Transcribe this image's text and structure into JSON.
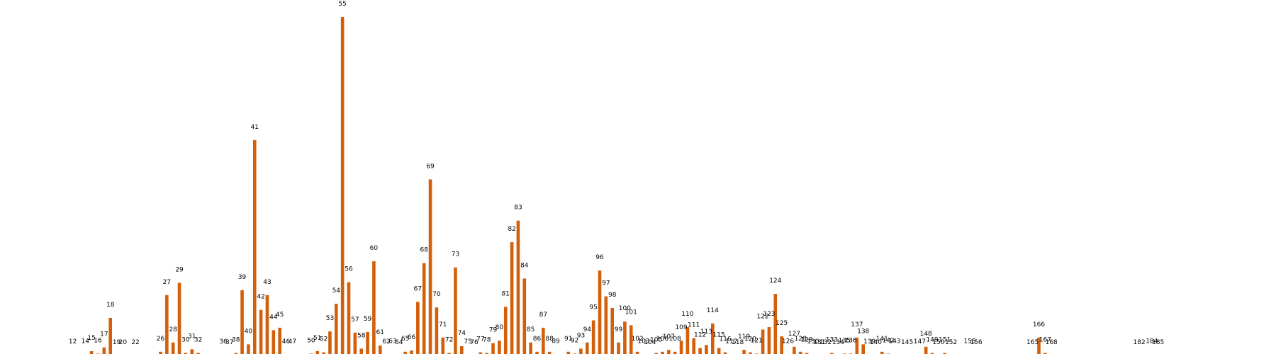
{
  "colors": {
    "bar": "#d35f0a",
    "background": "#ffffff"
  },
  "chart_data": {
    "type": "bar",
    "title": "",
    "xlabel": "",
    "ylabel": "",
    "ylim": [
      0,
      55
    ],
    "grid": false,
    "legend": "none",
    "data_labels": "bar index above each bar",
    "bars": [
      {
        "label": "12",
        "value": 0.1
      },
      {
        "label": "14",
        "value": 0.2
      },
      {
        "label": "15",
        "value": 0.7
      },
      {
        "label": "16",
        "value": 0.3
      },
      {
        "label": "17",
        "value": 1.3
      },
      {
        "label": "18",
        "value": 6.1
      },
      {
        "label": "19",
        "value": 0
      },
      {
        "label": "20",
        "value": 0
      },
      {
        "label": "22",
        "value": 0
      },
      {
        "label": "26",
        "value": 0.6
      },
      {
        "label": "27",
        "value": 9.8
      },
      {
        "label": "28",
        "value": 2.1
      },
      {
        "label": "29",
        "value": 11.8
      },
      {
        "label": "30",
        "value": 0.4
      },
      {
        "label": "31",
        "value": 1.0
      },
      {
        "label": "32",
        "value": 0.4
      },
      {
        "label": "36",
        "value": 0.1
      },
      {
        "label": "37",
        "value": 0
      },
      {
        "label": "38",
        "value": 0.4
      },
      {
        "label": "39",
        "value": 10.6
      },
      {
        "label": "40",
        "value": 1.8
      },
      {
        "label": "41",
        "value": 35.0
      },
      {
        "label": "42",
        "value": 7.4
      },
      {
        "label": "43",
        "value": 9.8
      },
      {
        "label": "44",
        "value": 4.1
      },
      {
        "label": "45",
        "value": 4.5
      },
      {
        "label": "46",
        "value": 0.1
      },
      {
        "label": "47",
        "value": 0.1
      },
      {
        "label": "50",
        "value": 0.3
      },
      {
        "label": "51",
        "value": 0.7
      },
      {
        "label": "52",
        "value": 0.5
      },
      {
        "label": "53",
        "value": 3.9
      },
      {
        "label": "54",
        "value": 8.4
      },
      {
        "label": "55",
        "value": 55.0
      },
      {
        "label": "56",
        "value": 11.9
      },
      {
        "label": "57",
        "value": 3.7
      },
      {
        "label": "58",
        "value": 1.1
      },
      {
        "label": "59",
        "value": 3.8
      },
      {
        "label": "60",
        "value": 15.3
      },
      {
        "label": "61",
        "value": 1.6
      },
      {
        "label": "62",
        "value": 0.1
      },
      {
        "label": "63",
        "value": 0.2
      },
      {
        "label": "64",
        "value": 0
      },
      {
        "label": "65",
        "value": 0.6
      },
      {
        "label": "66",
        "value": 0.8
      },
      {
        "label": "67",
        "value": 8.7
      },
      {
        "label": "68",
        "value": 15.0
      },
      {
        "label": "69",
        "value": 28.6
      },
      {
        "label": "70",
        "value": 7.8
      },
      {
        "label": "71",
        "value": 2.9
      },
      {
        "label": "72",
        "value": 0.4
      },
      {
        "label": "73",
        "value": 14.3
      },
      {
        "label": "74",
        "value": 1.5
      },
      {
        "label": "75",
        "value": 0.1
      },
      {
        "label": "76",
        "value": 0
      },
      {
        "label": "77",
        "value": 0.5
      },
      {
        "label": "78",
        "value": 0.4
      },
      {
        "label": "79",
        "value": 2.0
      },
      {
        "label": "80",
        "value": 2.4
      },
      {
        "label": "81",
        "value": 7.9
      },
      {
        "label": "82",
        "value": 18.4
      },
      {
        "label": "83",
        "value": 21.9
      },
      {
        "label": "84",
        "value": 12.5
      },
      {
        "label": "85",
        "value": 2.1
      },
      {
        "label": "86",
        "value": 0.6
      },
      {
        "label": "87",
        "value": 4.5
      },
      {
        "label": "88",
        "value": 0.6
      },
      {
        "label": "89",
        "value": 0.2
      },
      {
        "label": "91",
        "value": 0.6
      },
      {
        "label": "92",
        "value": 0.3
      },
      {
        "label": "93",
        "value": 1.1
      },
      {
        "label": "94",
        "value": 2.1
      },
      {
        "label": "95",
        "value": 5.7
      },
      {
        "label": "96",
        "value": 13.8
      },
      {
        "label": "97",
        "value": 9.6
      },
      {
        "label": "98",
        "value": 7.7
      },
      {
        "label": "99",
        "value": 2.1
      },
      {
        "label": "100",
        "value": 5.5
      },
      {
        "label": "101",
        "value": 4.9
      },
      {
        "label": "102",
        "value": 0.6
      },
      {
        "label": "103",
        "value": 0.2
      },
      {
        "label": "104",
        "value": 0
      },
      {
        "label": "105",
        "value": 0.4
      },
      {
        "label": "106",
        "value": 0.6
      },
      {
        "label": "107",
        "value": 0.9
      },
      {
        "label": "108",
        "value": 0.6
      },
      {
        "label": "109",
        "value": 2.4
      },
      {
        "label": "110",
        "value": 4.6
      },
      {
        "label": "111",
        "value": 2.8
      },
      {
        "label": "112",
        "value": 1.2
      },
      {
        "label": "113",
        "value": 1.7
      },
      {
        "label": "114",
        "value": 5.2
      },
      {
        "label": "115",
        "value": 1.2
      },
      {
        "label": "116",
        "value": 0.5
      },
      {
        "label": "117",
        "value": 0.1
      },
      {
        "label": "118",
        "value": 0
      },
      {
        "label": "119",
        "value": 0.9
      },
      {
        "label": "120",
        "value": 0.5
      },
      {
        "label": "121",
        "value": 0.3
      },
      {
        "label": "122",
        "value": 4.2
      },
      {
        "label": "123",
        "value": 4.6
      },
      {
        "label": "124",
        "value": 10.0
      },
      {
        "label": "125",
        "value": 3.1
      },
      {
        "label": "126",
        "value": 0.2
      },
      {
        "label": "127",
        "value": 1.4
      },
      {
        "label": "128",
        "value": 0.6
      },
      {
        "label": "129",
        "value": 0.4
      },
      {
        "label": "130",
        "value": 0.1
      },
      {
        "label": "131",
        "value": 0
      },
      {
        "label": "132",
        "value": 0
      },
      {
        "label": "133",
        "value": 0.4
      },
      {
        "label": "134",
        "value": 0
      },
      {
        "label": "135",
        "value": 0.3
      },
      {
        "label": "136",
        "value": 0.3
      },
      {
        "label": "137",
        "value": 2.9
      },
      {
        "label": "138",
        "value": 1.8
      },
      {
        "label": "139",
        "value": 0.1
      },
      {
        "label": "140",
        "value": 0
      },
      {
        "label": "141",
        "value": 0.6
      },
      {
        "label": "142",
        "value": 0.3
      },
      {
        "label": "143",
        "value": 0.2
      },
      {
        "label": "145",
        "value": 0
      },
      {
        "label": "147",
        "value": 0.1
      },
      {
        "label": "148",
        "value": 1.4
      },
      {
        "label": "149",
        "value": 0.4
      },
      {
        "label": "150",
        "value": 0
      },
      {
        "label": "151",
        "value": 0.4
      },
      {
        "label": "152",
        "value": 0
      },
      {
        "label": "155",
        "value": 0.2
      },
      {
        "label": "156",
        "value": 0
      },
      {
        "label": "165",
        "value": 0
      },
      {
        "label": "166",
        "value": 2.9
      },
      {
        "label": "167",
        "value": 0.4
      },
      {
        "label": "168",
        "value": 0
      },
      {
        "label": "182",
        "value": 0
      },
      {
        "label": "184",
        "value": 0.2
      },
      {
        "label": "185",
        "value": 0
      }
    ]
  }
}
